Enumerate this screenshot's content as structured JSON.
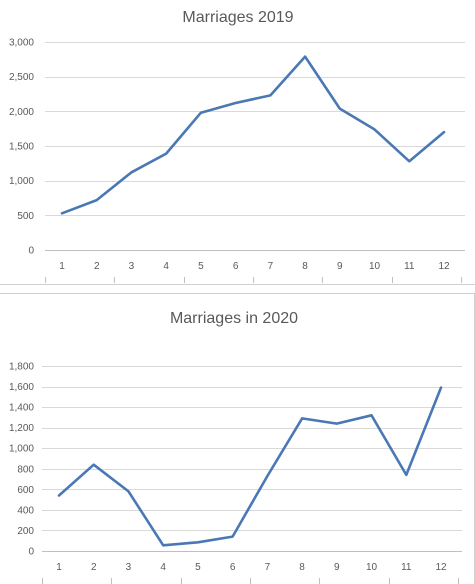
{
  "colors": {
    "series": "#4a78b5",
    "grid": "#d9d9d9",
    "text": "#595959",
    "background": "#ffffff"
  },
  "chart_data": [
    {
      "type": "line",
      "title": "Marriages 2019",
      "xlabel": "",
      "ylabel": "",
      "categories": [
        "1",
        "2",
        "3",
        "4",
        "5",
        "6",
        "7",
        "8",
        "9",
        "10",
        "11",
        "12"
      ],
      "series": [
        {
          "values": [
            530,
            720,
            1120,
            1390,
            1980,
            2120,
            2230,
            2790,
            2040,
            1740,
            1280,
            1700
          ]
        }
      ],
      "ylim": [
        0,
        3000
      ],
      "yticks": [
        0,
        500,
        1000,
        1500,
        2000,
        2500,
        3000
      ],
      "ytick_labels": [
        "0",
        "500",
        "1,000",
        "1,500",
        "2,000",
        "2,500",
        "3,000"
      ],
      "grid": true,
      "legend": "none"
    },
    {
      "type": "line",
      "title": "Marriages in 2020",
      "xlabel": "",
      "ylabel": "",
      "categories": [
        "1",
        "2",
        "3",
        "4",
        "5",
        "6",
        "7",
        "8",
        "9",
        "10",
        "11",
        "12"
      ],
      "series": [
        {
          "values": [
            540,
            840,
            580,
            55,
            85,
            140,
            730,
            1290,
            1240,
            1320,
            740,
            1590
          ]
        }
      ],
      "ylim": [
        0,
        1800
      ],
      "yticks": [
        0,
        200,
        400,
        600,
        800,
        1000,
        1200,
        1400,
        1600,
        1800
      ],
      "ytick_labels": [
        "0",
        "200",
        "400",
        "600",
        "800",
        "1,000",
        "1,200",
        "1,400",
        "1,600",
        "1,800"
      ],
      "grid": true,
      "legend": "none"
    }
  ]
}
